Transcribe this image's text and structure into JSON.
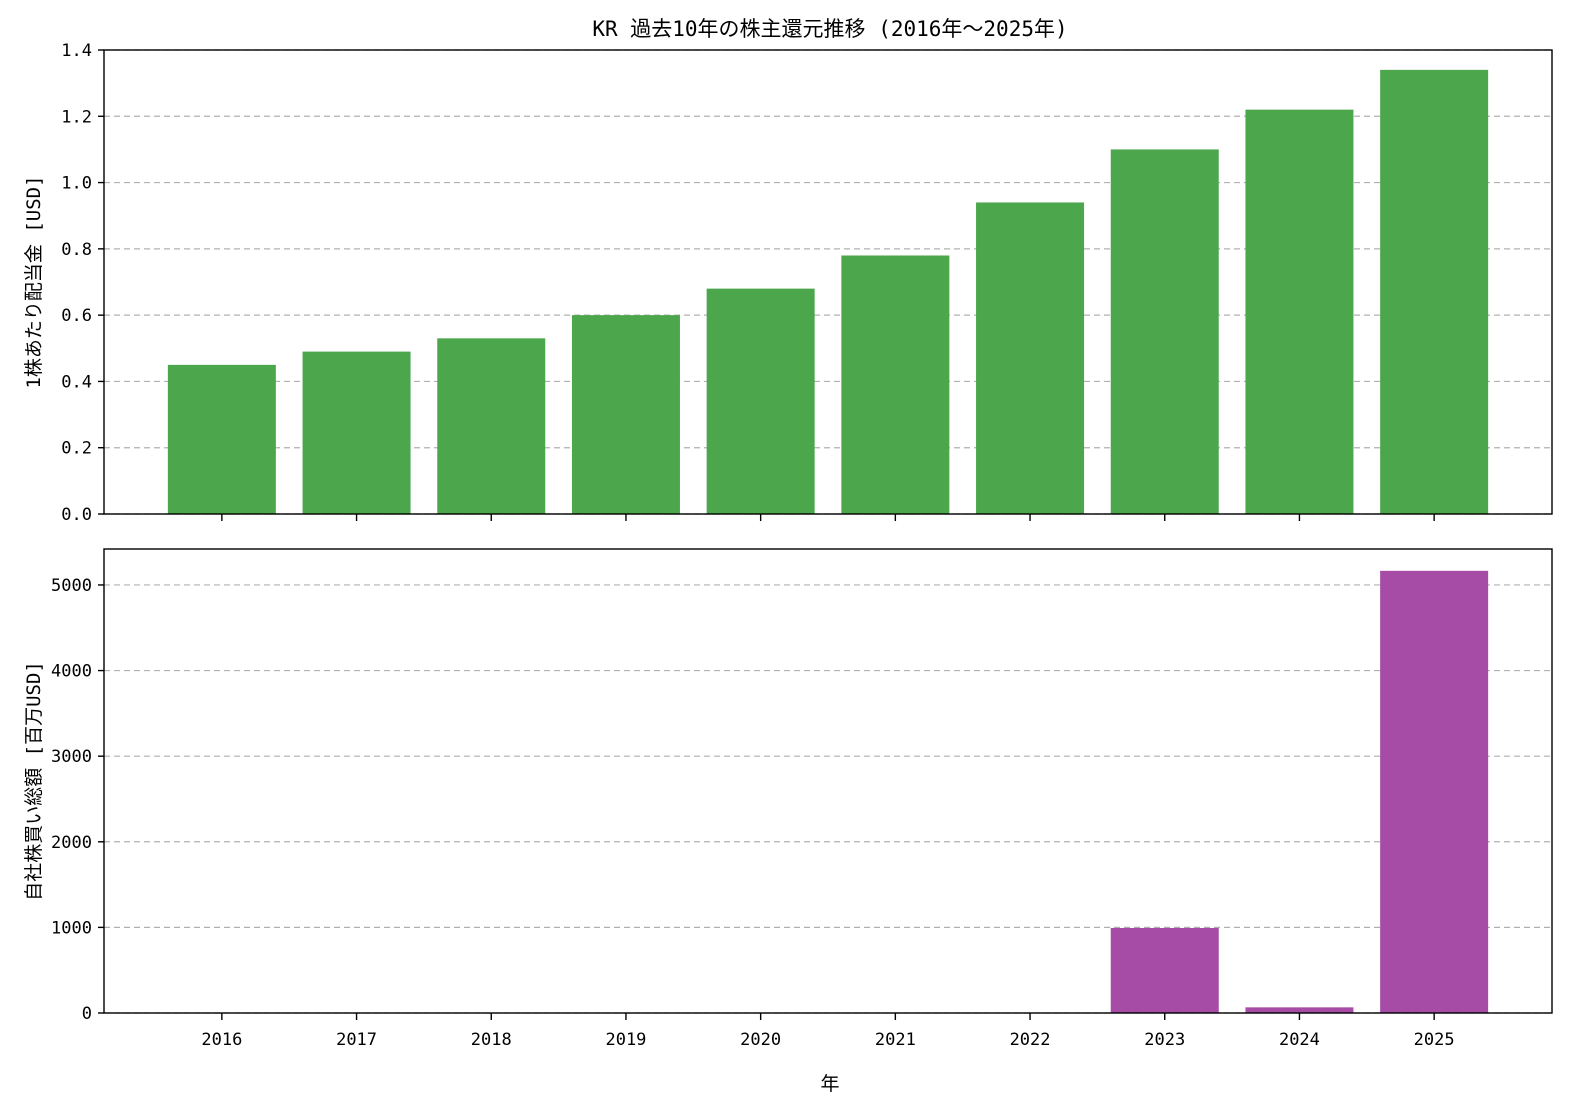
{
  "title": "KR 過去10年の株主還元推移 (2016年〜2025年)",
  "xlabel": "年",
  "chart_data": [
    {
      "type": "bar",
      "categories": [
        "2016",
        "2017",
        "2018",
        "2019",
        "2020",
        "2021",
        "2022",
        "2023",
        "2024",
        "2025"
      ],
      "values": [
        0.45,
        0.49,
        0.53,
        0.6,
        0.68,
        0.78,
        0.94,
        1.1,
        1.22,
        1.34
      ],
      "ylabel": "1株あたり配当金 [USD]",
      "ylim": [
        0,
        1.4
      ],
      "yticks": [
        "0.0",
        "0.2",
        "0.4",
        "0.6",
        "0.8",
        "1.0",
        "1.2",
        "1.4"
      ],
      "ytick_values": [
        0,
        0.2,
        0.4,
        0.6,
        0.8,
        1.0,
        1.2,
        1.4
      ],
      "color": "#4ca64c",
      "grid": "y-dashed"
    },
    {
      "type": "bar",
      "categories": [
        "2016",
        "2017",
        "2018",
        "2019",
        "2020",
        "2021",
        "2022",
        "2023",
        "2024",
        "2025"
      ],
      "values": [
        0,
        0,
        0,
        0,
        0,
        0,
        0,
        993,
        66,
        5165
      ],
      "ylabel": "自社株買い総額 [百万USD]",
      "xlabel": "年",
      "ylim": [
        0,
        5420
      ],
      "yticks": [
        "0",
        "1000",
        "2000",
        "3000",
        "4000",
        "5000"
      ],
      "ytick_values": [
        0,
        1000,
        2000,
        3000,
        4000,
        5000
      ],
      "color": "#a64ca6",
      "grid": "y-dashed"
    }
  ]
}
